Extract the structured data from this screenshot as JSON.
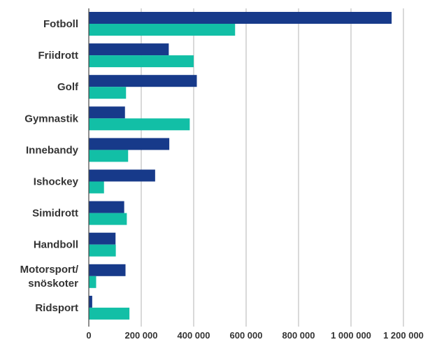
{
  "chart_data": {
    "type": "bar",
    "orientation": "horizontal",
    "categories": [
      "Fotboll",
      "Friidrott",
      "Golf",
      "Gymnastik",
      "Innebandy",
      "Ishockey",
      "Simidrott",
      "Handboll",
      "Motorsport/\nsnöskoter",
      "Ridsport"
    ],
    "series": [
      {
        "color": "#173a8a",
        "values": [
          1155000,
          305000,
          412000,
          138000,
          307000,
          253000,
          135000,
          102000,
          140000,
          13000
        ]
      },
      {
        "color": "#12bfa6",
        "values": [
          558000,
          400000,
          142000,
          385000,
          150000,
          58000,
          145000,
          103000,
          28000,
          155000
        ]
      }
    ],
    "xticks": [
      0,
      200000,
      400000,
      600000,
      800000,
      1000000,
      1200000
    ],
    "xtick_labels": [
      "0",
      "200 000",
      "400 000",
      "600 000",
      "800 000",
      "1 000 000",
      "1 200 000"
    ],
    "xlim": [
      0,
      1200000
    ],
    "grid": "vertical",
    "legend": "none",
    "title": "",
    "xlabel": "",
    "ylabel": ""
  }
}
